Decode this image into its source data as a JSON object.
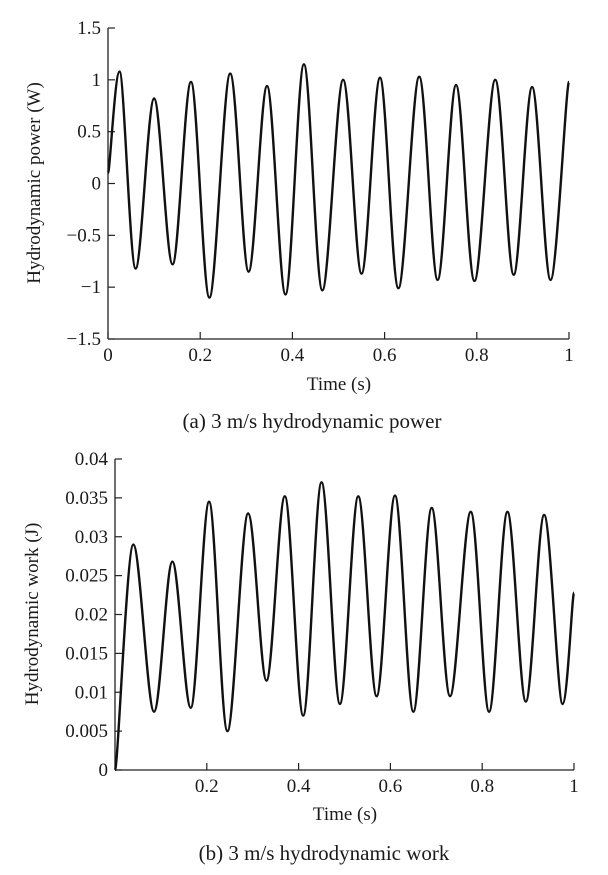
{
  "chart_data": [
    {
      "type": "line",
      "caption": "(a) 3 m/s hydrodynamic power",
      "xlabel": "Time (s)",
      "ylabel": "Hydrodynamic power (W)",
      "xlim": [
        0,
        1
      ],
      "ylim": [
        -1.5,
        1.5
      ],
      "xticks": [
        0,
        0.2,
        0.4,
        0.6,
        0.8,
        1
      ],
      "xtick_labels": [
        "0",
        "0.2",
        "0.4",
        "0.6",
        "0.8",
        "1"
      ],
      "yticks": [
        1.5,
        1,
        0.5,
        0,
        -0.5,
        -1,
        -1.5
      ],
      "ytick_labels": [
        "1.5",
        "1",
        "0.5",
        "0",
        "−0.5",
        "−1",
        "−1.5"
      ],
      "series": [
        {
          "name": "Hydrodynamic power",
          "x": [
            0,
            0.025,
            0.06,
            0.1,
            0.14,
            0.18,
            0.22,
            0.265,
            0.305,
            0.345,
            0.385,
            0.425,
            0.465,
            0.51,
            0.55,
            0.59,
            0.63,
            0.675,
            0.715,
            0.755,
            0.795,
            0.84,
            0.88,
            0.92,
            0.96,
            1.0
          ],
          "y": [
            0.1,
            1.08,
            -0.82,
            0.82,
            -0.78,
            0.98,
            -1.1,
            1.06,
            -0.85,
            0.94,
            -1.07,
            1.15,
            -1.03,
            1.0,
            -0.87,
            1.02,
            -1.01,
            1.03,
            -0.93,
            0.95,
            -0.94,
            1.0,
            -0.88,
            0.93,
            -0.93,
            0.98
          ]
        }
      ]
    },
    {
      "type": "line",
      "caption": "(b) 3 m/s hydrodynamic work",
      "xlabel": "Time (s)",
      "ylabel": "Hydrodynamic work (J)",
      "xlim": [
        0,
        1
      ],
      "ylim": [
        0,
        0.04
      ],
      "xticks": [
        0.2,
        0.4,
        0.6,
        0.8,
        1
      ],
      "xtick_labels": [
        "0.2",
        "0.4",
        "0.6",
        "0.8",
        "1"
      ],
      "yticks": [
        0.04,
        0.035,
        0.03,
        0.025,
        0.02,
        0.015,
        0.01,
        0.005,
        0
      ],
      "ytick_labels": [
        "0.04",
        "0.035",
        "0.03",
        "0.025",
        "0.02",
        "0.015",
        "0.01",
        "0.005",
        "0"
      ],
      "series": [
        {
          "name": "Hydrodynamic work",
          "x": [
            0,
            0.04,
            0.085,
            0.125,
            0.165,
            0.205,
            0.245,
            0.29,
            0.33,
            0.37,
            0.41,
            0.45,
            0.49,
            0.53,
            0.57,
            0.61,
            0.65,
            0.69,
            0.73,
            0.775,
            0.815,
            0.855,
            0.895,
            0.935,
            0.975,
            1.0
          ],
          "y": [
            0.0,
            0.029,
            0.0075,
            0.0268,
            0.008,
            0.0345,
            0.005,
            0.033,
            0.0115,
            0.0352,
            0.007,
            0.037,
            0.0085,
            0.0352,
            0.0095,
            0.0353,
            0.0075,
            0.0337,
            0.0095,
            0.0332,
            0.0075,
            0.0332,
            0.0088,
            0.0328,
            0.0085,
            0.0228
          ]
        }
      ]
    }
  ]
}
